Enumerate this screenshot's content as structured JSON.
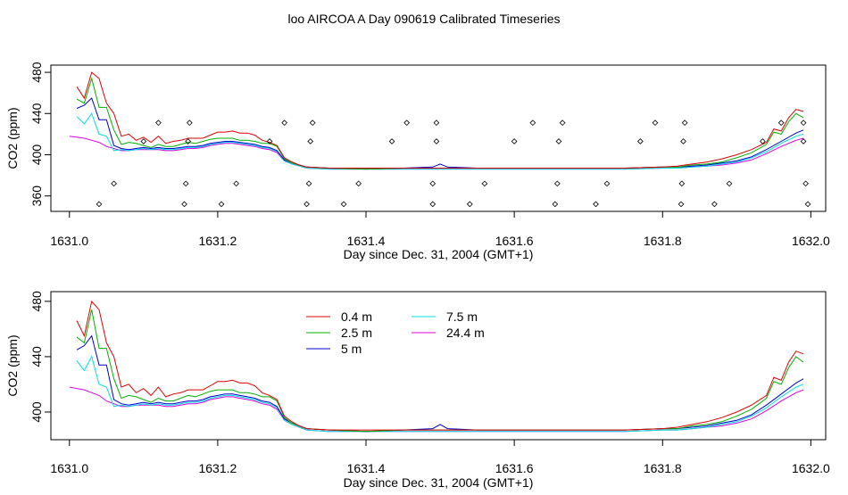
{
  "title": "loo AIRCOA A  Day 090619  Calibrated Timeseries",
  "legend_entries": [
    {
      "label": "0.4 m",
      "color": "#e00000"
    },
    {
      "label": "2.5 m",
      "color": "#00b000"
    },
    {
      "label": "5 m",
      "color": "#0000cc"
    },
    {
      "label": "7.5 m",
      "color": "#00e0e0"
    },
    {
      "label": "24.4 m",
      "color": "#e000e0"
    }
  ],
  "chart_data": [
    {
      "type": "line",
      "xlabel": "Day since Dec. 31, 2004 (GMT+1)",
      "ylabel": "CO2 (ppm)",
      "xlim": [
        1630.975,
        1632.02
      ],
      "ylim": [
        345,
        487
      ],
      "xticks": [
        {
          "value": 1631.0,
          "label": "1631.0"
        },
        {
          "value": 1631.2,
          "label": "1631.2"
        },
        {
          "value": 1631.4,
          "label": "1631.4"
        },
        {
          "value": 1631.6,
          "label": "1631.6"
        },
        {
          "value": 1631.8,
          "label": "1631.8"
        },
        {
          "value": 1632.0,
          "label": "1632.0"
        }
      ],
      "yticks": [
        {
          "value": 360,
          "label": "360"
        },
        {
          "value": 400,
          "label": "400"
        },
        {
          "value": 440,
          "label": "440"
        },
        {
          "value": 480,
          "label": "480"
        }
      ],
      "diagnostic_points": {
        "x": [
          1631.04,
          1631.06,
          1631.1,
          1631.12,
          1631.155,
          1631.157,
          1631.16,
          1631.162,
          1631.205,
          1631.225,
          1631.27,
          1631.29,
          1631.32,
          1631.323,
          1631.325,
          1631.328,
          1631.37,
          1631.39,
          1631.435,
          1631.455,
          1631.49,
          1631.49,
          1631.495,
          1631.495,
          1631.54,
          1631.56,
          1631.6,
          1631.625,
          1631.655,
          1631.658,
          1631.66,
          1631.665,
          1631.71,
          1631.725,
          1631.77,
          1631.79,
          1631.825,
          1631.826,
          1631.828,
          1631.83,
          1631.87,
          1631.89,
          1631.935,
          1631.96,
          1631.99,
          1631.99,
          1631.993,
          1631.996
        ],
        "y": [
          352,
          372,
          413,
          431,
          352,
          372,
          413,
          431,
          352,
          372,
          413,
          431,
          352,
          372,
          413,
          431,
          352,
          372,
          413,
          431,
          352,
          372,
          413,
          431,
          352,
          372,
          413,
          431,
          352,
          372,
          413,
          431,
          352,
          372,
          413,
          431,
          352,
          372,
          413,
          431,
          352,
          372,
          413,
          431,
          431,
          413,
          372,
          352
        ]
      },
      "series": [
        {
          "name": "0.4 m",
          "color": "#e00000",
          "x": [
            1631.01,
            1631.02,
            1631.03,
            1631.04,
            1631.05,
            1631.06,
            1631.07,
            1631.08,
            1631.09,
            1631.1,
            1631.11,
            1631.12,
            1631.13,
            1631.14,
            1631.15,
            1631.16,
            1631.17,
            1631.18,
            1631.19,
            1631.2,
            1631.21,
            1631.22,
            1631.23,
            1631.24,
            1631.25,
            1631.26,
            1631.27,
            1631.28,
            1631.29,
            1631.3,
            1631.31,
            1631.32,
            1631.35,
            1631.4,
            1631.45,
            1631.5,
            1631.55,
            1631.6,
            1631.65,
            1631.7,
            1631.75,
            1631.8,
            1631.82,
            1631.84,
            1631.86,
            1631.88,
            1631.9,
            1631.92,
            1631.94,
            1631.95,
            1631.96,
            1631.97,
            1631.98,
            1631.99
          ],
          "y": [
            466,
            455,
            480,
            474,
            450,
            440,
            418,
            420,
            414,
            417,
            412,
            418,
            411,
            413,
            414,
            416,
            416,
            416,
            419,
            422,
            422,
            423,
            421,
            421,
            419,
            414,
            412,
            409,
            397,
            393,
            390,
            388,
            387,
            387,
            387,
            387,
            387,
            387,
            387,
            387,
            387,
            388,
            389,
            391,
            393,
            396,
            400,
            405,
            412,
            425,
            423,
            436,
            444,
            442
          ]
        },
        {
          "name": "2.5 m",
          "color": "#00b000",
          "x": [
            1631.01,
            1631.02,
            1631.03,
            1631.04,
            1631.05,
            1631.06,
            1631.07,
            1631.08,
            1631.09,
            1631.1,
            1631.11,
            1631.12,
            1631.13,
            1631.14,
            1631.15,
            1631.16,
            1631.17,
            1631.18,
            1631.19,
            1631.2,
            1631.21,
            1631.22,
            1631.23,
            1631.24,
            1631.25,
            1631.26,
            1631.27,
            1631.28,
            1631.29,
            1631.3,
            1631.31,
            1631.32,
            1631.35,
            1631.4,
            1631.45,
            1631.5,
            1631.55,
            1631.6,
            1631.65,
            1631.7,
            1631.75,
            1631.8,
            1631.82,
            1631.84,
            1631.86,
            1631.88,
            1631.9,
            1631.92,
            1631.94,
            1631.95,
            1631.96,
            1631.97,
            1631.98,
            1631.99
          ],
          "y": [
            454,
            450,
            474,
            446,
            446,
            424,
            410,
            412,
            411,
            409,
            407,
            410,
            408,
            408,
            410,
            412,
            411,
            413,
            415,
            416,
            416,
            416,
            414,
            414,
            413,
            411,
            411,
            408,
            396,
            392,
            390,
            388,
            387,
            386,
            387,
            387,
            387,
            387,
            387,
            387,
            387,
            388,
            388,
            390,
            391,
            393,
            397,
            402,
            410,
            422,
            420,
            432,
            440,
            436
          ]
        },
        {
          "name": "5 m",
          "color": "#0000cc",
          "x": [
            1631.01,
            1631.02,
            1631.03,
            1631.04,
            1631.05,
            1631.06,
            1631.07,
            1631.08,
            1631.09,
            1631.1,
            1631.11,
            1631.12,
            1631.13,
            1631.14,
            1631.15,
            1631.16,
            1631.17,
            1631.18,
            1631.19,
            1631.2,
            1631.21,
            1631.22,
            1631.23,
            1631.24,
            1631.25,
            1631.26,
            1631.27,
            1631.28,
            1631.29,
            1631.3,
            1631.31,
            1631.32,
            1631.35,
            1631.4,
            1631.45,
            1631.49,
            1631.5,
            1631.51,
            1631.55,
            1631.6,
            1631.65,
            1631.7,
            1631.75,
            1631.8,
            1631.82,
            1631.84,
            1631.86,
            1631.88,
            1631.9,
            1631.92,
            1631.94,
            1631.96,
            1631.98,
            1631.99
          ],
          "y": [
            445,
            448,
            455,
            434,
            434,
            409,
            406,
            405,
            406,
            407,
            406,
            407,
            406,
            406,
            407,
            408,
            408,
            409,
            411,
            412,
            413,
            413,
            412,
            411,
            410,
            408,
            407,
            404,
            395,
            392,
            390,
            388,
            387,
            386,
            387,
            388,
            391,
            388,
            387,
            387,
            387,
            387,
            387,
            388,
            388,
            389,
            390,
            392,
            394,
            398,
            405,
            413,
            421,
            424
          ]
        },
        {
          "name": "7.5 m",
          "color": "#00e0e0",
          "x": [
            1631.01,
            1631.02,
            1631.03,
            1631.04,
            1631.05,
            1631.06,
            1631.07,
            1631.08,
            1631.09,
            1631.1,
            1631.11,
            1631.12,
            1631.13,
            1631.14,
            1631.15,
            1631.16,
            1631.17,
            1631.18,
            1631.19,
            1631.2,
            1631.21,
            1631.22,
            1631.23,
            1631.24,
            1631.25,
            1631.26,
            1631.27,
            1631.28,
            1631.29,
            1631.3,
            1631.31,
            1631.32,
            1631.35,
            1631.4,
            1631.45,
            1631.5,
            1631.55,
            1631.6,
            1631.65,
            1631.7,
            1631.75,
            1631.8,
            1631.82,
            1631.84,
            1631.86,
            1631.88,
            1631.9,
            1631.92,
            1631.94,
            1631.96,
            1631.98,
            1631.99
          ],
          "y": [
            437,
            430,
            440,
            420,
            418,
            404,
            405,
            404,
            405,
            406,
            405,
            406,
            405,
            405,
            406,
            407,
            407,
            408,
            410,
            411,
            412,
            412,
            411,
            410,
            409,
            407,
            406,
            403,
            394,
            391,
            389,
            387,
            386,
            386,
            386,
            386,
            386,
            386,
            386,
            386,
            386,
            387,
            387,
            388,
            389,
            391,
            393,
            397,
            403,
            411,
            418,
            420
          ]
        },
        {
          "name": "24.4 m",
          "color": "#e000e0",
          "x": [
            1631.0,
            1631.01,
            1631.02,
            1631.03,
            1631.04,
            1631.05,
            1631.06,
            1631.07,
            1631.08,
            1631.09,
            1631.1,
            1631.11,
            1631.12,
            1631.13,
            1631.14,
            1631.15,
            1631.16,
            1631.17,
            1631.18,
            1631.19,
            1631.2,
            1631.21,
            1631.22,
            1631.23,
            1631.24,
            1631.25,
            1631.26,
            1631.27,
            1631.28,
            1631.29,
            1631.3,
            1631.31,
            1631.32,
            1631.35,
            1631.4,
            1631.45,
            1631.5,
            1631.55,
            1631.6,
            1631.65,
            1631.7,
            1631.75,
            1631.8,
            1631.82,
            1631.84,
            1631.86,
            1631.88,
            1631.9,
            1631.92,
            1631.94,
            1631.96,
            1631.98,
            1631.99
          ],
          "y": [
            418,
            417,
            416,
            414,
            412,
            408,
            406,
            404,
            404,
            405,
            405,
            405,
            405,
            404,
            404,
            405,
            406,
            406,
            407,
            409,
            410,
            411,
            411,
            410,
            409,
            408,
            406,
            405,
            402,
            394,
            391,
            389,
            387,
            386,
            386,
            386,
            386,
            386,
            386,
            386,
            386,
            386,
            387,
            387,
            388,
            389,
            390,
            392,
            395,
            401,
            408,
            414,
            416
          ]
        }
      ]
    },
    {
      "type": "line",
      "xlabel": "Day since Dec. 31, 2004 (GMT+1)",
      "ylabel": "CO2 (ppm)",
      "xlim": [
        1630.975,
        1632.02
      ],
      "ylim": [
        380,
        487
      ],
      "xticks": [
        {
          "value": 1631.0,
          "label": "1631.0"
        },
        {
          "value": 1631.2,
          "label": "1631.2"
        },
        {
          "value": 1631.4,
          "label": "1631.4"
        },
        {
          "value": 1631.6,
          "label": "1631.6"
        },
        {
          "value": 1631.8,
          "label": "1631.8"
        },
        {
          "value": 1632.0,
          "label": "1632.0"
        }
      ],
      "yticks": [
        {
          "value": 400,
          "label": "400"
        },
        {
          "value": 440,
          "label": "440"
        },
        {
          "value": 480,
          "label": "480"
        }
      ],
      "legend": "top-center",
      "series_ref": "same as panel 1 series (0.4 m, 2.5 m, 5 m, 7.5 m, 24.4 m)"
    }
  ]
}
